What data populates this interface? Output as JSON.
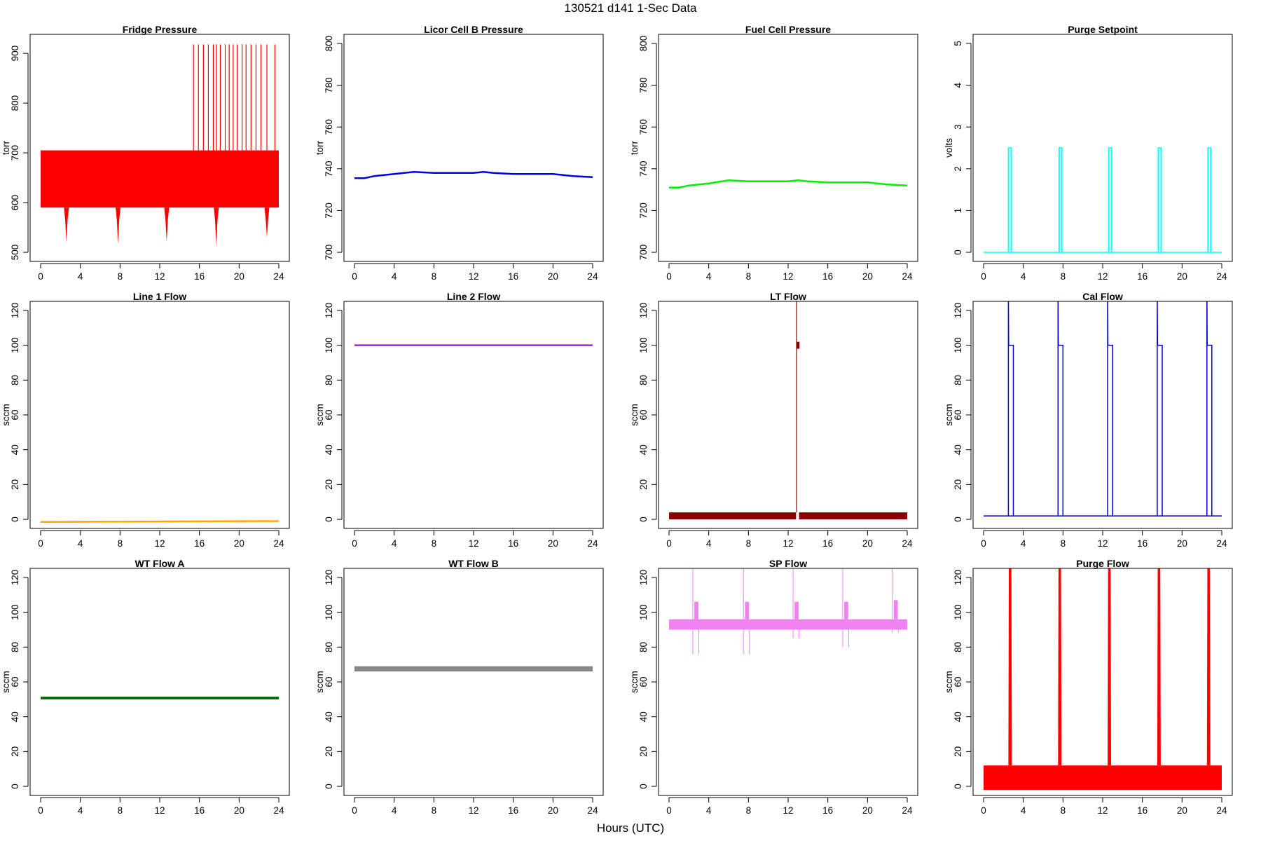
{
  "figure": {
    "title": "130521   d141   1-Sec Data",
    "xlabel": "Hours (UTC)"
  },
  "chart_data": [
    {
      "type": "line",
      "title": "Fridge Pressure",
      "ylabel": "torr",
      "color": "#ff0000",
      "xlim": [
        0,
        24
      ],
      "ylim": [
        500,
        920
      ],
      "xticks": [
        0,
        4,
        8,
        12,
        16,
        20,
        24
      ],
      "yticks": [
        500,
        600,
        700,
        800,
        900
      ],
      "band": {
        "low": 590,
        "high": 705
      },
      "dips": [
        {
          "x": 2.6,
          "y": 520
        },
        {
          "x": 7.8,
          "y": 517
        },
        {
          "x": 12.7,
          "y": 522
        },
        {
          "x": 17.7,
          "y": 513
        },
        {
          "x": 22.8,
          "y": 530
        }
      ],
      "spikes": {
        "x": [
          15.4,
          15.9,
          16.4,
          16.9,
          17.4,
          17.7,
          18.1,
          18.6,
          19.0,
          19.4,
          19.8,
          20.3,
          20.7,
          21.2,
          21.7,
          22.2,
          22.8,
          23.6
        ],
        "y": 918
      }
    },
    {
      "type": "line",
      "title": "Licor Cell B Pressure",
      "ylabel": "torr",
      "color": "#0000dd",
      "xlim": [
        0,
        24
      ],
      "ylim": [
        700,
        800
      ],
      "xticks": [
        0,
        4,
        8,
        12,
        16,
        20,
        24
      ],
      "yticks": [
        700,
        720,
        740,
        760,
        780,
        800
      ],
      "x": [
        0,
        1,
        2,
        4,
        6,
        8,
        10,
        12,
        13,
        14,
        16,
        18,
        20,
        22,
        24
      ],
      "y": [
        735.5,
        735.5,
        736.5,
        737.5,
        738.5,
        738,
        738,
        738,
        738.5,
        738,
        737.5,
        737.5,
        737.5,
        736.5,
        736
      ]
    },
    {
      "type": "line",
      "title": "Fuel Cell Pressure",
      "ylabel": "torr",
      "color": "#00ee00",
      "xlim": [
        0,
        24
      ],
      "ylim": [
        700,
        800
      ],
      "xticks": [
        0,
        4,
        8,
        12,
        16,
        20,
        24
      ],
      "yticks": [
        700,
        720,
        740,
        760,
        780,
        800
      ],
      "x": [
        0,
        1,
        2,
        4,
        6,
        8,
        10,
        12,
        13,
        14,
        16,
        18,
        20,
        22,
        24
      ],
      "y": [
        731,
        731,
        732,
        733,
        734.5,
        734,
        734,
        734,
        734.5,
        734,
        733.5,
        733.5,
        733.5,
        732.5,
        732
      ]
    },
    {
      "type": "line",
      "title": "Purge Setpoint",
      "ylabel": "volts",
      "color": "#00ffff",
      "xlim": [
        0,
        24
      ],
      "ylim": [
        0,
        5
      ],
      "xticks": [
        0,
        4,
        8,
        12,
        16,
        20,
        24
      ],
      "yticks": [
        0,
        1,
        2,
        3,
        4,
        5
      ],
      "baseline": 0,
      "pulses": {
        "starts": [
          2.5,
          7.6,
          12.6,
          17.6,
          22.6
        ],
        "width": 0.3,
        "level": 2.5
      }
    },
    {
      "type": "line",
      "title": "Line 1 Flow",
      "ylabel": "sccm",
      "color": "#ffa500",
      "xlim": [
        0,
        24
      ],
      "ylim": [
        0,
        120
      ],
      "xticks": [
        0,
        4,
        8,
        12,
        16,
        20,
        24
      ],
      "yticks": [
        0,
        20,
        40,
        60,
        80,
        100,
        120
      ],
      "x": [
        0,
        24
      ],
      "y": [
        -1.5,
        -1
      ]
    },
    {
      "type": "line",
      "title": "Line 2 Flow",
      "ylabel": "sccm",
      "color": "#a020f0",
      "xlim": [
        0,
        24
      ],
      "ylim": [
        0,
        120
      ],
      "xticks": [
        0,
        4,
        8,
        12,
        16,
        20,
        24
      ],
      "yticks": [
        0,
        20,
        40,
        60,
        80,
        100,
        120
      ],
      "x": [
        0,
        24
      ],
      "y": [
        100,
        100
      ]
    },
    {
      "type": "line",
      "title": "LT Flow",
      "ylabel": "sccm",
      "color": "#8b0000",
      "xlim": [
        0,
        24
      ],
      "ylim": [
        0,
        120
      ],
      "xticks": [
        0,
        4,
        8,
        12,
        16,
        20,
        24
      ],
      "yticks": [
        0,
        20,
        40,
        60,
        80,
        100,
        120
      ],
      "band": {
        "low": 0,
        "high": 4
      },
      "gap": [
        12.8,
        13.1
      ],
      "spike": {
        "x": 12.85,
        "y": 130
      },
      "block": {
        "x": [
          12.85,
          13.15
        ],
        "low": 98,
        "high": 102
      }
    },
    {
      "type": "line",
      "title": "Cal Flow",
      "ylabel": "sccm",
      "color": "#0000cd",
      "xlim": [
        0,
        24
      ],
      "ylim": [
        0,
        120
      ],
      "xticks": [
        0,
        4,
        8,
        12,
        16,
        20,
        24
      ],
      "yticks": [
        0,
        20,
        40,
        60,
        80,
        100,
        120
      ],
      "baseline": 2,
      "pulses": {
        "starts": [
          2.5,
          7.5,
          12.5,
          17.5,
          22.5
        ],
        "width": 0.5,
        "level": 100,
        "peak": 130
      }
    },
    {
      "type": "line",
      "title": "WT Flow A",
      "ylabel": "sccm",
      "color": "#006400",
      "xlim": [
        0,
        24
      ],
      "ylim": [
        0,
        120
      ],
      "xticks": [
        0,
        4,
        8,
        12,
        16,
        20,
        24
      ],
      "yticks": [
        0,
        20,
        40,
        60,
        80,
        100,
        120
      ],
      "band": {
        "low": 50,
        "high": 51.5
      }
    },
    {
      "type": "line",
      "title": "WT Flow B",
      "ylabel": "sccm",
      "color": "#888888",
      "xlim": [
        0,
        24
      ],
      "ylim": [
        0,
        120
      ],
      "xticks": [
        0,
        4,
        8,
        12,
        16,
        20,
        24
      ],
      "yticks": [
        0,
        20,
        40,
        60,
        80,
        100,
        120
      ],
      "band": {
        "low": 66,
        "high": 69
      }
    },
    {
      "type": "line",
      "title": "SP Flow",
      "ylabel": "sccm",
      "color": "#ee82ee",
      "xlim": [
        0,
        24
      ],
      "ylim": [
        0,
        120
      ],
      "xticks": [
        0,
        4,
        8,
        12,
        16,
        20,
        24
      ],
      "yticks": [
        0,
        20,
        40,
        60,
        80,
        100,
        120
      ],
      "band": {
        "low": 90,
        "high": 96
      },
      "events": [
        {
          "x": 2.6,
          "high": 106,
          "peak": 130,
          "low": 76
        },
        {
          "x": 7.7,
          "high": 106,
          "peak": 130,
          "low": 76
        },
        {
          "x": 12.7,
          "high": 106,
          "peak": 130,
          "low": 85
        },
        {
          "x": 17.7,
          "high": 106,
          "peak": 130,
          "low": 80
        },
        {
          "x": 22.7,
          "high": 107,
          "peak": 130,
          "low": 88
        }
      ]
    },
    {
      "type": "line",
      "title": "Purge Flow",
      "ylabel": "sccm",
      "color": "#ff0000",
      "xlim": [
        0,
        24
      ],
      "ylim": [
        0,
        120
      ],
      "xticks": [
        0,
        4,
        8,
        12,
        16,
        20,
        24
      ],
      "yticks": [
        0,
        20,
        40,
        60,
        80,
        100,
        120
      ],
      "band": {
        "low": -2,
        "high": 12
      },
      "pulses": {
        "starts": [
          2.5,
          7.5,
          12.5,
          17.5,
          22.5
        ],
        "width": 0.35,
        "level": 125,
        "peak": 130
      }
    }
  ]
}
